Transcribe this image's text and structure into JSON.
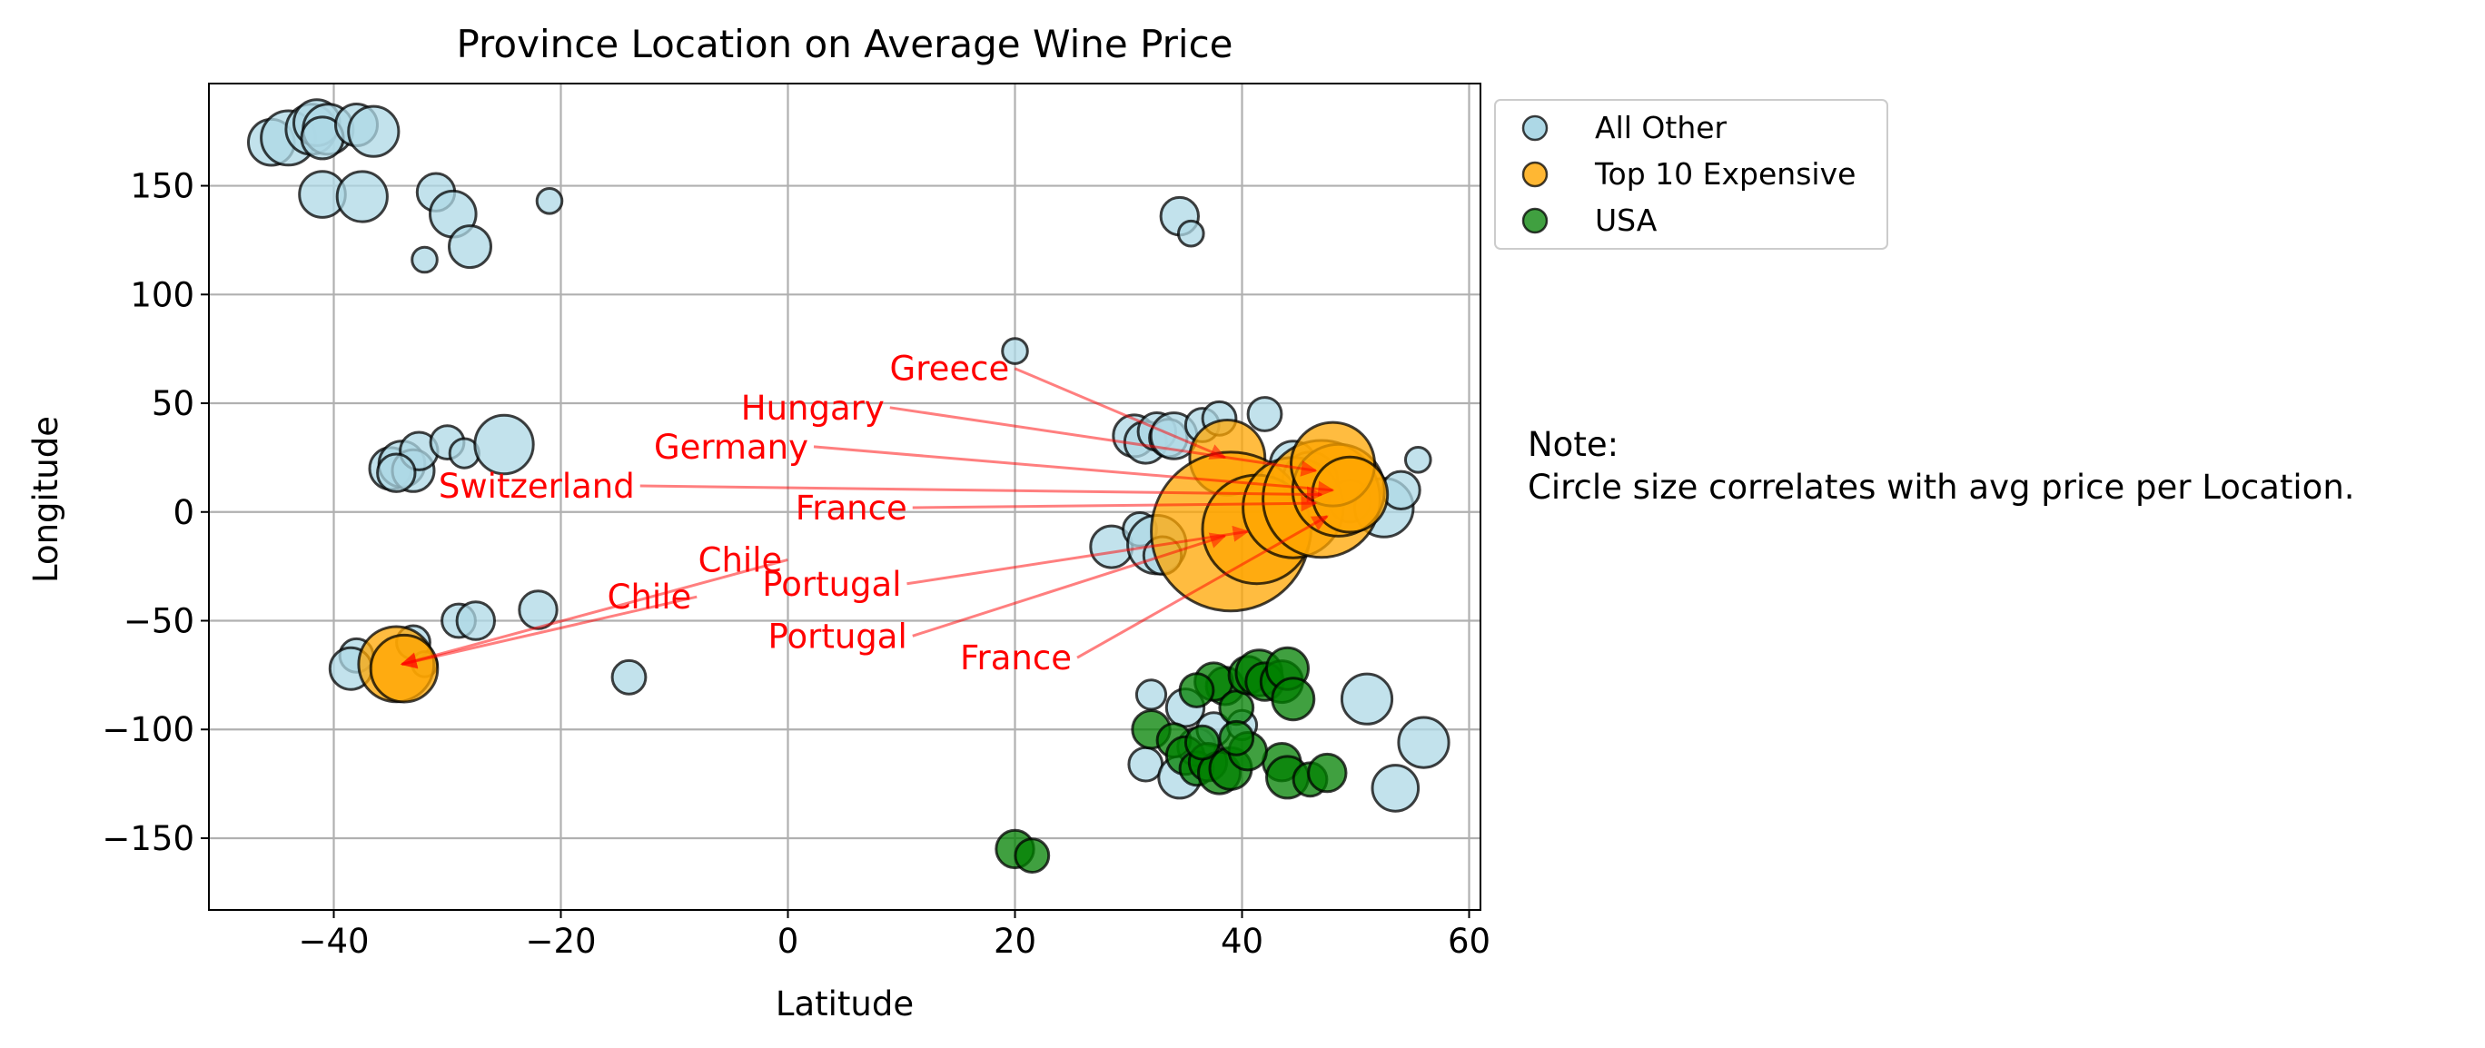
{
  "chart_data": {
    "type": "scatter",
    "title": "Province Location on Average Wine Price",
    "xlabel": "Latitude",
    "ylabel": "Longitude",
    "xlim": [
      -51,
      61
    ],
    "ylim": [
      -183,
      197
    ],
    "xticks": [
      -40,
      -20,
      0,
      20,
      40,
      60
    ],
    "yticks": [
      -150,
      -100,
      -50,
      0,
      50,
      100,
      150
    ],
    "xtick_labels": [
      "−40",
      "−20",
      "0",
      "20",
      "40",
      "60"
    ],
    "ytick_labels": [
      "−150",
      "−100",
      "−50",
      "0",
      "50",
      "100",
      "150"
    ],
    "grid": true,
    "legend_position": "outside-top-right",
    "note": [
      "Note:",
      "Circle size correlates with avg price per Location."
    ],
    "colors": {
      "all_other": "#add8e6",
      "top10": "#ffa500",
      "usa": "#008000",
      "annotation": "#ff0000"
    },
    "series": [
      {
        "name": "All Other",
        "key": "all_other",
        "points": [
          [
            -45.5,
            170,
            11
          ],
          [
            -44,
            172,
            13
          ],
          [
            -42,
            176,
            12
          ],
          [
            -41.5,
            179,
            11
          ],
          [
            -40.5,
            176,
            12
          ],
          [
            -41,
            172,
            10
          ],
          [
            -38,
            178,
            10
          ],
          [
            -36.5,
            175,
            12
          ],
          [
            -41,
            146,
            11
          ],
          [
            -37.5,
            145,
            12
          ],
          [
            -31,
            147,
            9
          ],
          [
            -29.5,
            137,
            11
          ],
          [
            -28,
            122,
            10
          ],
          [
            -32,
            116,
            6
          ],
          [
            -21,
            143,
            6
          ],
          [
            -35,
            20,
            10
          ],
          [
            -34,
            22,
            11
          ],
          [
            -33,
            19,
            10
          ],
          [
            -32.5,
            28,
            9
          ],
          [
            -30,
            32,
            8
          ],
          [
            -28.5,
            27,
            7
          ],
          [
            -25,
            31,
            14
          ],
          [
            -34.5,
            18,
            9
          ],
          [
            -38,
            -66,
            8
          ],
          [
            -38.5,
            -72,
            10
          ],
          [
            -33,
            -60,
            8
          ],
          [
            -32,
            -70,
            6
          ],
          [
            -29,
            -50,
            8
          ],
          [
            -27.5,
            -50,
            9
          ],
          [
            -22,
            -45,
            9
          ],
          [
            -14,
            -76,
            8
          ],
          [
            20,
            74,
            6
          ],
          [
            34.5,
            136,
            9
          ],
          [
            35.5,
            128,
            6
          ],
          [
            28.5,
            -16,
            10
          ],
          [
            31,
            -8,
            8
          ],
          [
            32.5,
            -15,
            14
          ],
          [
            33,
            -20,
            9
          ],
          [
            30.5,
            35,
            10
          ],
          [
            31.5,
            32,
            10
          ],
          [
            32.5,
            37,
            9
          ],
          [
            33.5,
            34,
            9
          ],
          [
            34,
            35,
            11
          ],
          [
            36.5,
            40,
            8
          ],
          [
            38,
            43,
            8
          ],
          [
            42,
            45,
            8
          ],
          [
            44.5,
            22,
            11
          ],
          [
            46,
            15,
            13
          ],
          [
            49.5,
            5,
            10
          ],
          [
            52.5,
            2,
            14
          ],
          [
            54,
            10,
            9
          ],
          [
            55.5,
            24,
            6
          ],
          [
            32,
            -84,
            7
          ],
          [
            35,
            -90,
            9
          ],
          [
            31.5,
            -116,
            8
          ],
          [
            34.5,
            -122,
            10
          ],
          [
            36,
            -108,
            9
          ],
          [
            37.5,
            -100,
            8
          ],
          [
            51,
            -86,
            12
          ],
          [
            56,
            -106,
            12
          ],
          [
            53.5,
            -127,
            11
          ],
          [
            40,
            -98,
            7
          ]
        ]
      },
      {
        "name": "Top 10 Expensive",
        "key": "top10",
        "points": [
          [
            -34.5,
            -70,
            18
          ],
          [
            -33.8,
            -72,
            16
          ],
          [
            38.7,
            25,
            18
          ],
          [
            39,
            -9,
            38
          ],
          [
            41.3,
            -8,
            26
          ],
          [
            44.5,
            2,
            24
          ],
          [
            47,
            6,
            28
          ],
          [
            48.5,
            10,
            22
          ],
          [
            48,
            22,
            20
          ],
          [
            49.5,
            8,
            18
          ]
        ]
      },
      {
        "name": "USA",
        "key": "usa",
        "points": [
          [
            32,
            -100,
            9
          ],
          [
            34,
            -105,
            8
          ],
          [
            35,
            -112,
            9
          ],
          [
            36,
            -118,
            8
          ],
          [
            37,
            -115,
            9
          ],
          [
            38,
            -120,
            10
          ],
          [
            38.5,
            -80,
            9
          ],
          [
            37.5,
            -78,
            9
          ],
          [
            36,
            -82,
            8
          ],
          [
            39.5,
            -90,
            8
          ],
          [
            40.5,
            -75,
            9
          ],
          [
            41.5,
            -74,
            11
          ],
          [
            42,
            -78,
            9
          ],
          [
            43.5,
            -78,
            10
          ],
          [
            44,
            -72,
            10
          ],
          [
            44.5,
            -86,
            10
          ],
          [
            43.5,
            -115,
            9
          ],
          [
            44,
            -122,
            10
          ],
          [
            46,
            -123,
            8
          ],
          [
            47.5,
            -120,
            9
          ],
          [
            39,
            -118,
            10
          ],
          [
            40.5,
            -110,
            9
          ],
          [
            39.5,
            -104,
            8
          ],
          [
            20,
            -155,
            9
          ],
          [
            21.5,
            -158,
            8
          ],
          [
            36.5,
            -106,
            8
          ]
        ]
      }
    ],
    "annotations": [
      {
        "text": "Greece",
        "text_x": 19.5,
        "text_y": 66,
        "target_x": 38.5,
        "target_y": 25,
        "align": "end"
      },
      {
        "text": "Hungary",
        "text_x": 8.5,
        "text_y": 48,
        "target_x": 46.5,
        "target_y": 19,
        "align": "end"
      },
      {
        "text": "Germany",
        "text_x": 1.8,
        "text_y": 30,
        "target_x": 48,
        "target_y": 10,
        "align": "end"
      },
      {
        "text": "Switzerland",
        "text_x": -13.5,
        "text_y": 12,
        "target_x": 47,
        "target_y": 8,
        "align": "end"
      },
      {
        "text": "France",
        "text_x": 10.5,
        "text_y": 2,
        "target_x": 46.5,
        "target_y": 4,
        "align": "end"
      },
      {
        "text": "Chile",
        "text_x": -0.5,
        "text_y": -22,
        "target_x": -34,
        "target_y": -70,
        "align": "end"
      },
      {
        "text": "Chile",
        "text_x": -8.5,
        "text_y": -39,
        "target_x": -34,
        "target_y": -70,
        "align": "end"
      },
      {
        "text": "Portugal",
        "text_x": 10,
        "text_y": -33,
        "target_x": 40.5,
        "target_y": -9,
        "align": "end"
      },
      {
        "text": "Portugal",
        "text_x": 10.5,
        "text_y": -57,
        "target_x": 38.5,
        "target_y": -11,
        "align": "end"
      },
      {
        "text": "France",
        "text_x": 25,
        "text_y": -67,
        "target_x": 47.5,
        "target_y": -2,
        "align": "end"
      }
    ]
  }
}
